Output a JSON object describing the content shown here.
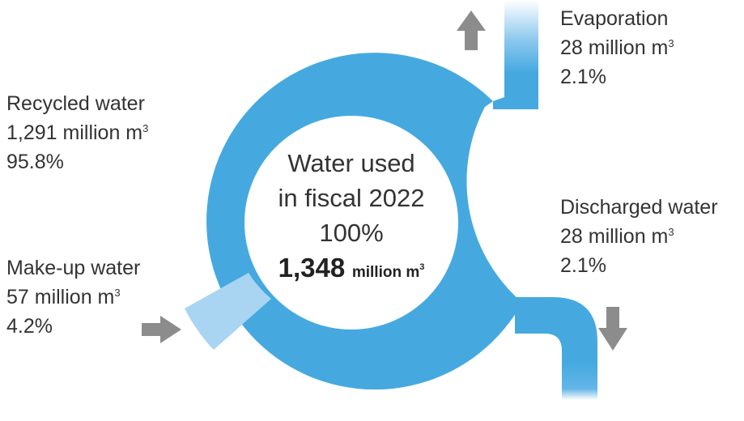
{
  "center": {
    "title_line1": "Water used",
    "title_line2": "in fiscal 2022",
    "percent": "100%",
    "total_value": "1,348",
    "total_unit": "million m",
    "unit_sup": "3"
  },
  "flows": {
    "evaporation": {
      "name": "Evaporation",
      "amount": "28 million m",
      "sup": "3",
      "percent": "2.1%"
    },
    "recycled": {
      "name": "Recycled water",
      "amount": "1,291 million m",
      "sup": "3",
      "percent": "95.8%"
    },
    "discharged": {
      "name": "Discharged water",
      "amount": "28 million m",
      "sup": "3",
      "percent": "2.1%"
    },
    "makeup": {
      "name": "Make-up water",
      "amount": "57 million m",
      "sup": "3",
      "percent": "4.2%"
    }
  },
  "colors": {
    "ring": "#45a9e0",
    "makeup_segment": "#a9d4f2",
    "arrow": "#8c8c8c",
    "text": "#333333"
  },
  "icons": {
    "evaporation_arrow": "arrow-up-icon",
    "discharge_arrow": "arrow-down-icon",
    "makeup_arrow": "arrow-right-icon"
  }
}
